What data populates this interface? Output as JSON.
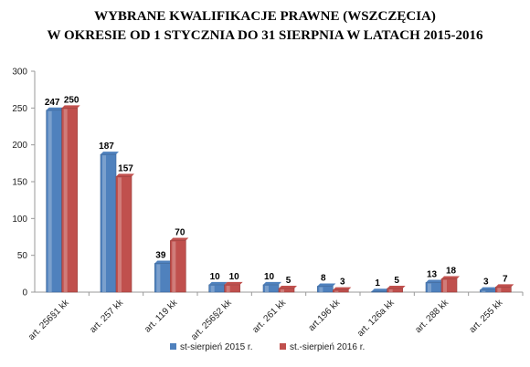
{
  "chart_data": {
    "type": "bar",
    "title": "WYBRANE KWALIFIKACJE PRAWNE (WSZCZĘCIA)",
    "subtitle": "W OKRESIE OD 1 STYCZNIA DO 31 SIERPNIA W LATACH 2015-2016",
    "categories": [
      "art. 256§1 kk",
      "art. 257 kk",
      "art. 119 kk",
      "art. 256§2 kk",
      "art. 261 kk",
      "art.196 kk",
      "art. 126a kk",
      "art. 288 kk",
      "art. 255 kk"
    ],
    "series": [
      {
        "name": "st-sierpień  2015 r.",
        "values": [
          247,
          187,
          39,
          10,
          10,
          8,
          1,
          13,
          3
        ],
        "color": "#4f81bd"
      },
      {
        "name": "st.-sierpień 2016 r.",
        "values": [
          250,
          157,
          70,
          10,
          5,
          3,
          5,
          18,
          7
        ],
        "color": "#c0504d"
      }
    ],
    "ylim": [
      0,
      300
    ],
    "yticks": [
      0,
      50,
      100,
      150,
      200,
      250,
      300
    ],
    "grid": false,
    "legend": "bottom"
  }
}
